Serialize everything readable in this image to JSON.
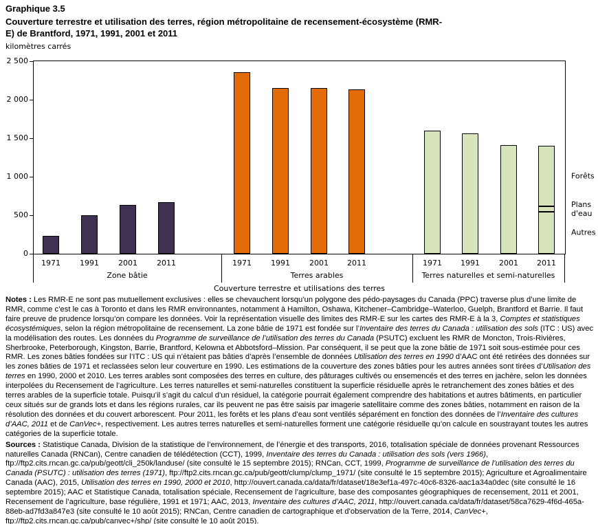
{
  "title": {
    "graphic_number": "Graphique 3.5",
    "main": "Couverture terrestre et utilisation des terres, région métropolitaine de recensement-écosystème (RMR-E) de Brantford, 1971, 1991, 2001 et 2011",
    "unit_label": "kilomètres carrés"
  },
  "chart_data": {
    "type": "bar",
    "title": "Couverture terrestre et utilisation des terres, région métropolitaine de recensement-écosystème (RMR-E) de Brantford, 1971, 1991, 2001 et 2011",
    "ylabel": "kilomètres carrés",
    "xlabel": "Couverture terrestre et utilisations des terres",
    "ylim": [
      0,
      2500
    ],
    "grid": false,
    "y_ticks": [
      {
        "value": 0,
        "label": "0"
      },
      {
        "value": 500,
        "label": "500"
      },
      {
        "value": 1000,
        "label": "1 000"
      },
      {
        "value": 1500,
        "label": "1 500"
      },
      {
        "value": 2000,
        "label": "2 000"
      },
      {
        "value": 2500,
        "label": "2 500"
      }
    ],
    "years": [
      "1971",
      "1991",
      "2001",
      "2011"
    ],
    "groups": [
      {
        "label": "Zone bâtie",
        "slug": "zone-batie",
        "color": "#403152",
        "values": [
          230,
          500,
          630,
          670
        ]
      },
      {
        "label": "Terres arables",
        "slug": "terres-arables",
        "color": "#e36c0a",
        "values": [
          2360,
          2150,
          2155,
          2135
        ]
      },
      {
        "label": "Terres naturelles et semi-naturelles",
        "slug": "terres-naturelles-et-semi-naturelles",
        "color": "#d7e4bc",
        "values": [
          1600,
          1560,
          1410,
          1405
        ],
        "stacked": {
          "year": "2011",
          "segments": [
            {
              "label": "Autres",
              "slug": "autres",
              "value": 545
            },
            {
              "label": "Plans d'eau",
              "slug": "plans-d-eau",
              "value": 75
            },
            {
              "label": "Forêts",
              "slug": "forets",
              "value": 785
            }
          ]
        }
      }
    ]
  },
  "notes": {
    "label": "Notes :",
    "runs": [
      {
        "t": " Les RMR-E ne sont pas mutuellement exclusives : elles se chevauchent lorsqu’un polygone des pédo-paysages du Canada (PPC) traverse plus d’une limite de RMR, comme c’est le cas à Toronto et dans les RMR environnantes, notamment à Hamilton, Oshawa, Kitchener–Cambridge–Waterloo, Guelph, Brantford et Barrie. Il faut faire preuve de prudence lorsqu’on compare les données. Voir la représentation visuelle des limites des RMR-E sur les cartes des RMR-E à la 3, ",
        "i": false
      },
      {
        "t": "Comptes et statistiques écosystémiques",
        "i": true
      },
      {
        "t": ", selon la région métropolitaine de recensement. La zone bâtie de 1971 est fondée sur l’",
        "i": false
      },
      {
        "t": "Inventaire des terres du Canada : utilisation des sols",
        "i": true
      },
      {
        "t": " (ITC : US) avec la modélisation des routes. Les données du ",
        "i": false
      },
      {
        "t": "Programme de surveillance de l’utilisation des terres du Canada",
        "i": true
      },
      {
        "t": " (PSUTC) excluent les RMR de Moncton, Trois-Rivières, Sherbrooke, Peterborough, Kingston, Barrie, Brantford, Kelowna et Abbotsford–Mission. Par conséquent, il se peut que la zone bâtie de 1971 soit sous-estimée pour ces RMR. Les zones bâties fondées sur l’ITC : US qui n’étaient pas bâties d’après l’ensemble de données ",
        "i": false
      },
      {
        "t": "Utilisation des terres en 1990",
        "i": true
      },
      {
        "t": " d’AAC ont été retirées des données sur les zones bâties de 1971 et reclassées selon leur couverture en 1990. Les estimations de la couverture des zones bâties pour les autres années sont tirées d’",
        "i": false
      },
      {
        "t": "Utilisation des terres",
        "i": true
      },
      {
        "t": " en 1990, 2000 et 2010. Les terres arables sont composées des terres en culture, des pâturages cultivés ou ensemencés et des terres en jachère, selon les données interpolées du Recensement de l’agriculture. Les terres naturelles et semi-naturelles constituent la superficie résiduelle après le retranchement des zones bâties et des terres arables de la superficie totale. Puisqu’il s’agit du calcul d’un résiduel, la catégorie pourrait également comprendre des habitations et autres bâtiments, en particulier ceux situés sur de grands lots et dans les régions rurales, car ils peuvent ne pas être saisis par imagerie satellitaire comme des zones bâties, notamment en raison de la résolution des données et du couvert arborescent. Pour 2011, les forêts et les plans d’eau sont ventilés séparément en fonction des données de l’",
        "i": false
      },
      {
        "t": "Inventaire des cultures d’AAC, 2011",
        "i": true
      },
      {
        "t": " et de ",
        "i": false
      },
      {
        "t": "CanVec+",
        "i": true
      },
      {
        "t": ", respectivement. Les autres terres naturelles et semi-naturelles forment une catégorie résiduelle qu’on calcule en soustrayant toutes les autres catégories de la superficie totale.",
        "i": false
      }
    ]
  },
  "sources": {
    "label": "Sources :",
    "runs": [
      {
        "t": " Statistique Canada, Division de la statistique de l’environnement, de l’énergie et des transports, 2016, totalisation spéciale de données provenant Ressources naturelles Canada (RNCan), Centre canadien de télédétection (CCT), 1999, ",
        "i": false
      },
      {
        "t": "Inventaire des terres du Canada : utilisation des sols (vers 1966)",
        "i": true
      },
      {
        "t": ", ftp://ftp2.cits.rncan.gc.ca/pub/geott/cli_250k/landuse/ (site consulté le 15 septembre 2015); RNCan, CCT, 1999, ",
        "i": false
      },
      {
        "t": "Programme de surveillance de l’utilisation des terres du Canada (PSUTC) : utilisation des terres (1971)",
        "i": true
      },
      {
        "t": ", ftp://ftp2.cits.rncan.gc.ca/pub/geott/clump/clump_1971/ (site consulté le 15 septembre 2015); Agriculture et Agroalimentaire Canada (AAC), 2015, ",
        "i": false
      },
      {
        "t": "Utilisation des terres en 1990, 2000 et 2010",
        "i": true
      },
      {
        "t": ", http://ouvert.canada.ca/data/fr/dataset/18e3ef1a-497c-40c6-8326-aac1a34a0dec (site consulté le 16 septembre 2015); AAC et Statistique Canada, totalisation spéciale, Recensement de l’agriculture, base des composantes géographiques de recensement, 2011 et 2001, Recensement de l’agriculture, base régulière, 1991 et 1971; AAC, 2013, ",
        "i": false
      },
      {
        "t": "Inventaire des cultures d’AAC, 2011",
        "i": true
      },
      {
        "t": ", http://ouvert.canada.ca/data/fr/dataset/58ca7629-4f6d-465a-88eb-ad7fd3a847e3 (site consulté le 10 août 2015); RNCan, Centre canadien de cartographique et d’observation de la Terre, 2014, ",
        "i": false
      },
      {
        "t": "CanVec+",
        "i": true
      },
      {
        "t": ", ftp://ftp2.cits.rncan.gc.ca/pub/canvec+/shp/ (site consulté le 10 août 2015).",
        "i": false
      }
    ]
  }
}
